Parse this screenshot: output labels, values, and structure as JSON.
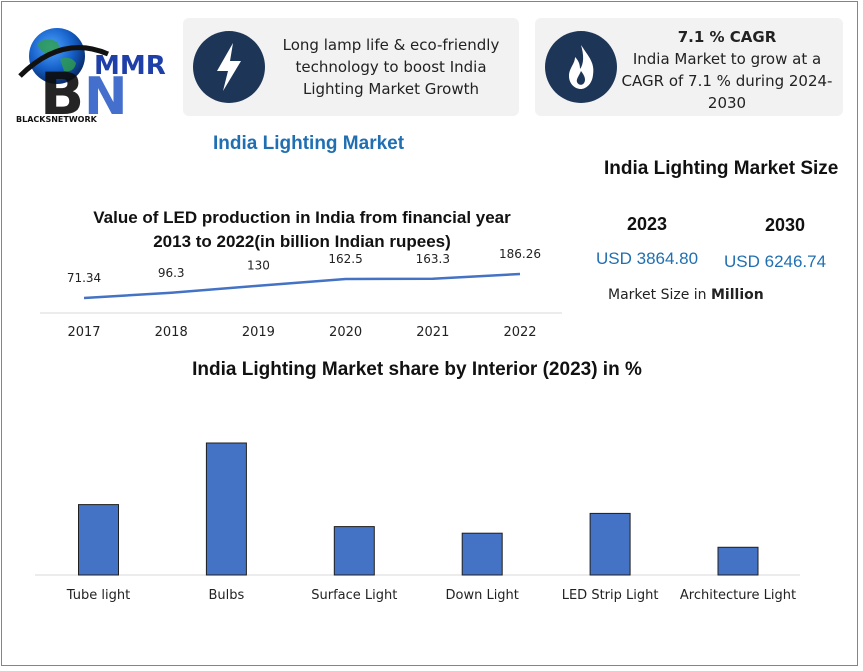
{
  "logo": {
    "letters": "MMR",
    "network": "BLACKSNETWORK"
  },
  "cards": [
    {
      "icon": "lightning-icon",
      "text": "Long lamp life & eco-friendly technology to boost India Lighting Market Growth"
    },
    {
      "icon": "flame-icon",
      "heading": "7.1 % CAGR",
      "text": "India Market to grow at a CAGR of 7.1 % during 2024-2030"
    }
  ],
  "market_title": "India Lighting Market",
  "market_size": {
    "title": "India Lighting Market Size",
    "year_a": "2023",
    "year_b": "2030",
    "value_a": "USD 3864.80",
    "value_b": "USD 6246.74",
    "unit_prefix": "Market Size in ",
    "unit_bold": "Million"
  },
  "colors": {
    "accent": "#1f6fb2",
    "bar": "#4472c4",
    "line": "#4472c4",
    "icon_bg": "#1d3557"
  },
  "chart_data": [
    {
      "type": "line",
      "title": "Value of LED production in India from financial year 2013 to 2022(in billion Indian rupees)",
      "x": [
        "2017",
        "2018",
        "2019",
        "2020",
        "2021",
        "2022"
      ],
      "series": [
        {
          "values": [
            71.34,
            96.3,
            130,
            162.5,
            163.3,
            186.26
          ]
        }
      ],
      "data_labels": [
        "71.34",
        "96.3",
        "130",
        "162.5",
        "163.3",
        "186.26"
      ],
      "grid": false,
      "legend": "none"
    },
    {
      "type": "bar",
      "title": "India Lighting Market share by Interior (2023) in %",
      "categories": [
        "Tube light",
        "Bulbs",
        "Surface Light",
        "Down Light",
        "LED Strip Light",
        "Architecture Light"
      ],
      "values": [
        16,
        30,
        11,
        9.5,
        14,
        6.3
      ],
      "ylim": [
        0,
        30
      ],
      "grid": false,
      "legend": "none"
    }
  ]
}
